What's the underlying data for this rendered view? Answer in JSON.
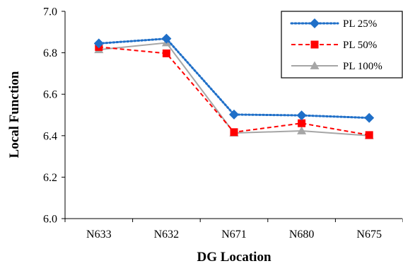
{
  "chart_data": {
    "type": "line",
    "categories": [
      "N633",
      "N632",
      "N671",
      "N680",
      "N675"
    ],
    "xlabel": "DG Location",
    "ylabel": "Local Function",
    "ylim": [
      6.0,
      7.0
    ],
    "yticks": [
      "6.0",
      "6.2",
      "6.4",
      "6.6",
      "6.8",
      "7.0"
    ],
    "grid": false,
    "legend_position": "top-right",
    "series": [
      {
        "name": "PL 25%",
        "values": [
          6.845,
          6.868,
          6.502,
          6.498,
          6.486
        ],
        "color": "#1F6FC8",
        "line_style": "dotted",
        "marker": "diamond"
      },
      {
        "name": "PL 50%",
        "values": [
          6.828,
          6.797,
          6.417,
          6.46,
          6.403
        ],
        "color": "#FF0000",
        "line_style": "dashed",
        "marker": "square"
      },
      {
        "name": "PL 100%",
        "values": [
          6.815,
          6.848,
          6.413,
          6.423,
          6.4
        ],
        "color": "#A6A6A6",
        "line_style": "solid",
        "marker": "triangle"
      }
    ]
  }
}
